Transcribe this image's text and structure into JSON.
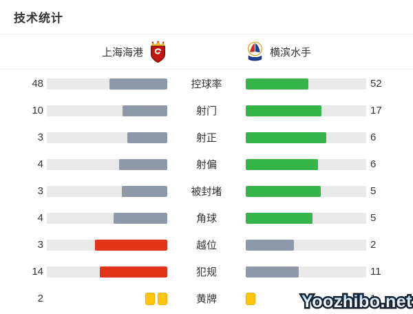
{
  "title": "技术统计",
  "teams": {
    "home": {
      "name": "上海海港"
    },
    "away": {
      "name": "横滨水手"
    }
  },
  "watermark": "Yoozhibo.net",
  "colors": {
    "home_default": "#8d99a9",
    "home_highlight": "#e23418",
    "away_default": "#35b449",
    "away_muted": "#8d99a9",
    "track": "#e9e9e9",
    "card_yellow": "#ffc60a",
    "text": "#333333"
  },
  "rows": [
    {
      "type": "bar",
      "label": "控球率",
      "home": 48,
      "away": 52,
      "home_color": "home_default",
      "away_color": "away_default"
    },
    {
      "type": "bar",
      "label": "射门",
      "home": 10,
      "away": 17,
      "home_color": "home_default",
      "away_color": "away_default"
    },
    {
      "type": "bar",
      "label": "射正",
      "home": 3,
      "away": 6,
      "home_color": "home_default",
      "away_color": "away_default"
    },
    {
      "type": "bar",
      "label": "射偏",
      "home": 4,
      "away": 6,
      "home_color": "home_default",
      "away_color": "away_default"
    },
    {
      "type": "bar",
      "label": "被封堵",
      "home": 3,
      "away": 5,
      "home_color": "home_default",
      "away_color": "away_default"
    },
    {
      "type": "bar",
      "label": "角球",
      "home": 4,
      "away": 5,
      "home_color": "home_default",
      "away_color": "away_default"
    },
    {
      "type": "bar",
      "label": "越位",
      "home": 3,
      "away": 2,
      "home_color": "home_highlight",
      "away_color": "away_muted"
    },
    {
      "type": "bar",
      "label": "犯规",
      "home": 14,
      "away": 11,
      "home_color": "home_highlight",
      "away_color": "away_muted"
    },
    {
      "type": "cards",
      "label": "黄牌",
      "home": 2,
      "away": 1,
      "home_color": "card_yellow",
      "away_color": "card_yellow"
    }
  ],
  "chart_data": {
    "type": "bar",
    "title": "技术统计",
    "orientation": "horizontal-paired",
    "categories": [
      "控球率",
      "射门",
      "射正",
      "射偏",
      "被封堵",
      "角球",
      "越位",
      "犯规",
      "黄牌"
    ],
    "series": [
      {
        "name": "上海海港",
        "values": [
          48,
          10,
          3,
          4,
          3,
          4,
          3,
          14,
          2
        ]
      },
      {
        "name": "横滨水手",
        "values": [
          52,
          17,
          6,
          6,
          5,
          5,
          2,
          11,
          1
        ]
      }
    ],
    "legend_position": "top",
    "grid": false,
    "notes": "Each bar fill length = value / (home value + away value). Home bars anchored right, away bars anchored left. 越位 and 犯规 home bars are red and away bars gray; all other home bars gray, away bars green. 黄牌 row rendered as yellow card icons instead of bars."
  }
}
